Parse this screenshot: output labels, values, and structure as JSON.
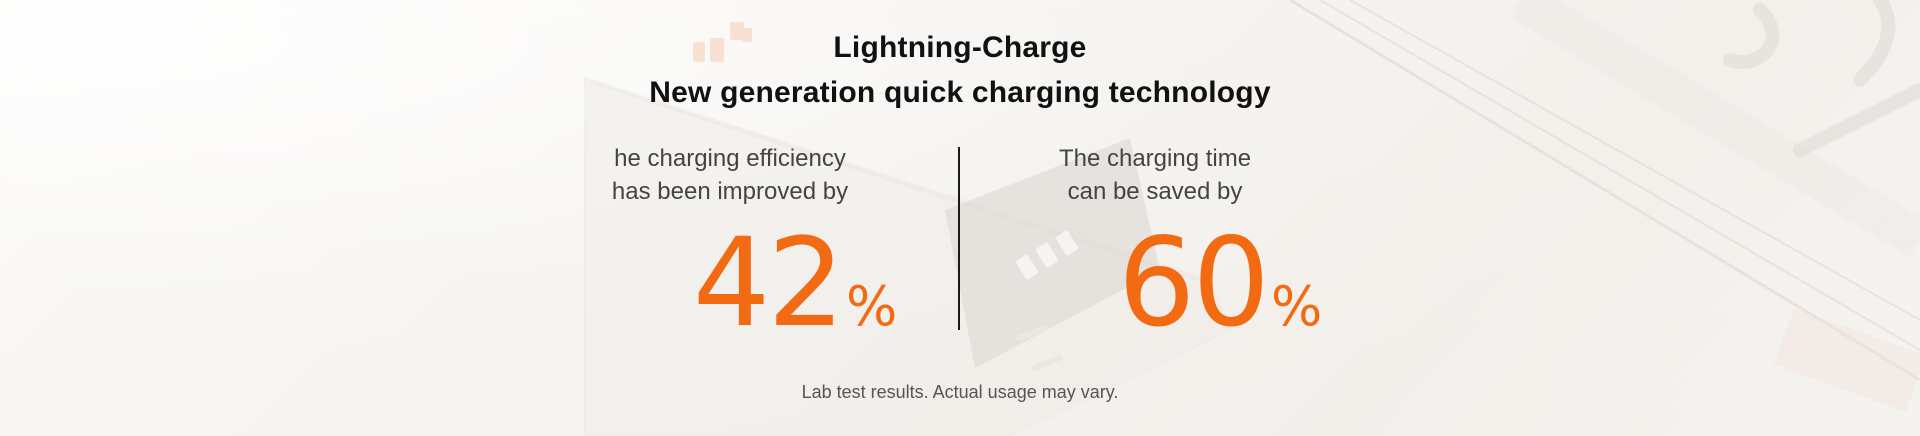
{
  "header": {
    "title_line1": "Lightning-Charge",
    "title_line2": "New generation quick charging technology"
  },
  "stats": [
    {
      "label_line1": "he charging efficiency",
      "label_line2": "has been improved by",
      "value": "42",
      "unit": "%"
    },
    {
      "label_line1": "The charging time",
      "label_line2": "can be saved by",
      "value": "60",
      "unit": "%"
    }
  ],
  "footnote": "Lab test results. Actual usage may vary.",
  "colors": {
    "accent": "#f26a11",
    "title": "#111111",
    "text": "#444444",
    "divider": "#1a1a1a"
  }
}
